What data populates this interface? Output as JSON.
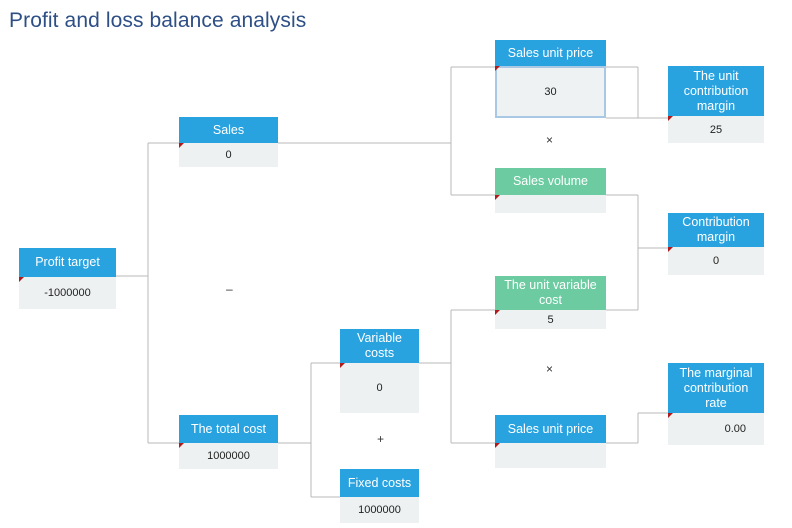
{
  "title": "Profit and loss balance analysis",
  "nodes": {
    "profit_target": {
      "label": "Profit target",
      "value": "-1000000"
    },
    "sales": {
      "label": "Sales",
      "value": "0"
    },
    "total_cost": {
      "label": "The total cost",
      "value": "1000000"
    },
    "sales_unit_price_top": {
      "label": "Sales unit price",
      "value": "30"
    },
    "sales_volume": {
      "label": "Sales volume",
      "value": ""
    },
    "unit_variable_cost": {
      "label": "The unit variable cost",
      "value": "5"
    },
    "sales_unit_price_bottom": {
      "label": "Sales unit price",
      "value": ""
    },
    "variable_costs": {
      "label": "Variable costs",
      "value": "0"
    },
    "fixed_costs": {
      "label": "Fixed costs",
      "value": "1000000"
    },
    "unit_contribution_margin": {
      "label": "The unit contribution margin",
      "value": "25"
    },
    "contribution_margin": {
      "label": "Contribution margin",
      "value": "0"
    },
    "marginal_contribution_rate": {
      "label": "The marginal contribution rate",
      "value": "0.00"
    }
  },
  "operators": {
    "minus": "–",
    "times_top": "×",
    "times_bottom": "×",
    "plus": "+"
  }
}
